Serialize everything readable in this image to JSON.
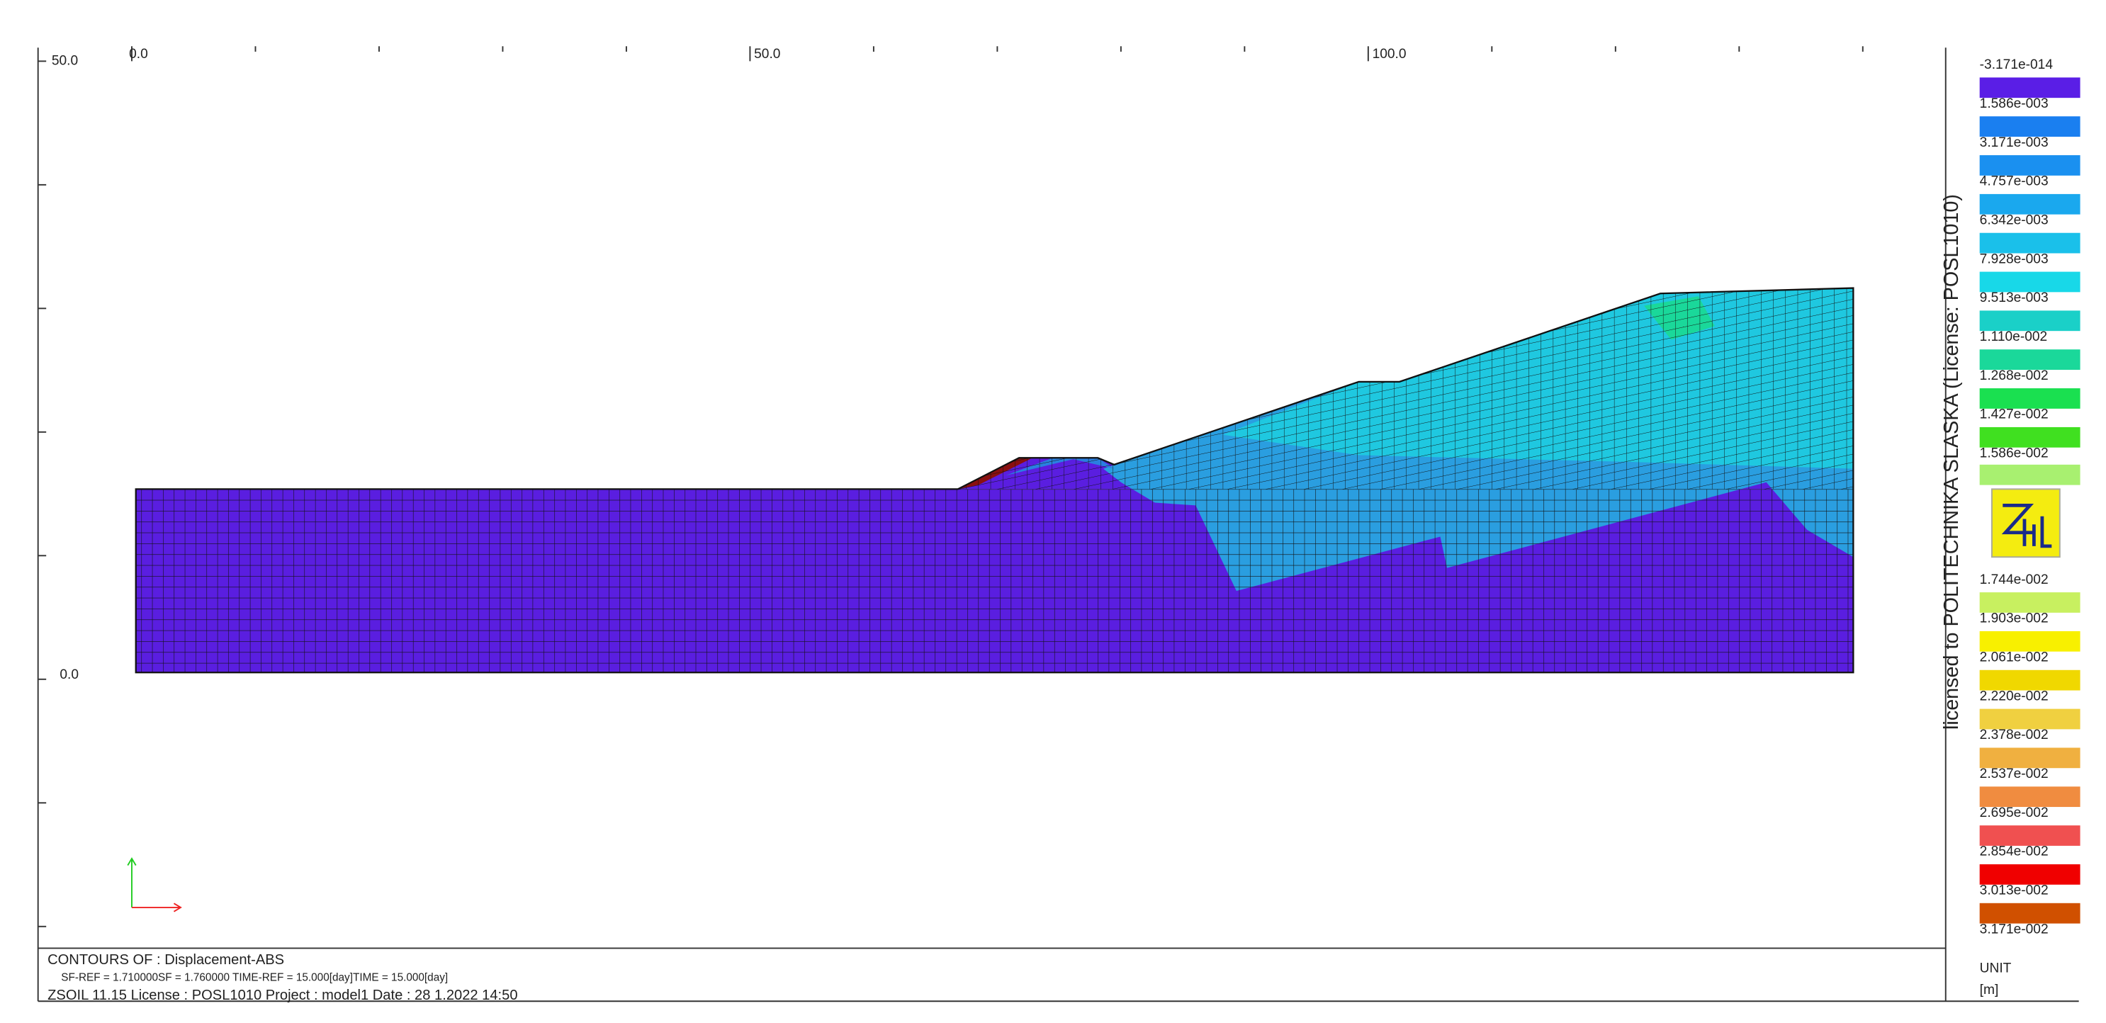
{
  "ruler": {
    "top_labels": [
      "0.0",
      "50.0",
      "100.0"
    ],
    "left_labels": [
      "50.0",
      "0.0"
    ]
  },
  "footer": {
    "line1": "CONTOURS OF : Displacement-ABS",
    "line2": "SF-REF = 1.710000SF = 1.760000  TIME-REF = 15.000[day]TIME = 15.000[day]",
    "line3": "ZSOIL 11.15  License :  POSL1010  Project : model1   Date : 28  1.2022  14:50"
  },
  "license_text": "licensed to POLITECHNIKA SLASKA (License: POSL1010)",
  "legend": {
    "labels": [
      "-3.171e-014",
      "1.586e-003",
      "3.171e-003",
      "4.757e-003",
      "6.342e-003",
      "7.928e-003",
      "9.513e-003",
      "1.110e-002",
      "1.268e-002",
      "1.427e-002",
      "1.586e-002",
      "1.744e-002",
      "1.903e-002",
      "2.061e-002",
      "2.220e-002",
      "2.378e-002",
      "2.537e-002",
      "2.695e-002",
      "2.854e-002",
      "3.013e-002",
      "3.171e-002"
    ],
    "colors": [
      "#5a1ee6",
      "#1a7ff0",
      "#1a90f0",
      "#1aa8ee",
      "#1ac0ea",
      "#18d8e8",
      "#1ad0c8",
      "#1ad89a",
      "#1ae050",
      "#40e020",
      "#a8f070",
      "#c8f060",
      "#f8f000",
      "#f0d800",
      "#f0d040",
      "#f0b040",
      "#f08c40",
      "#f05050",
      "#f00000",
      "#d05000"
    ],
    "unit_title": "UNIT",
    "unit": "[m]"
  }
}
